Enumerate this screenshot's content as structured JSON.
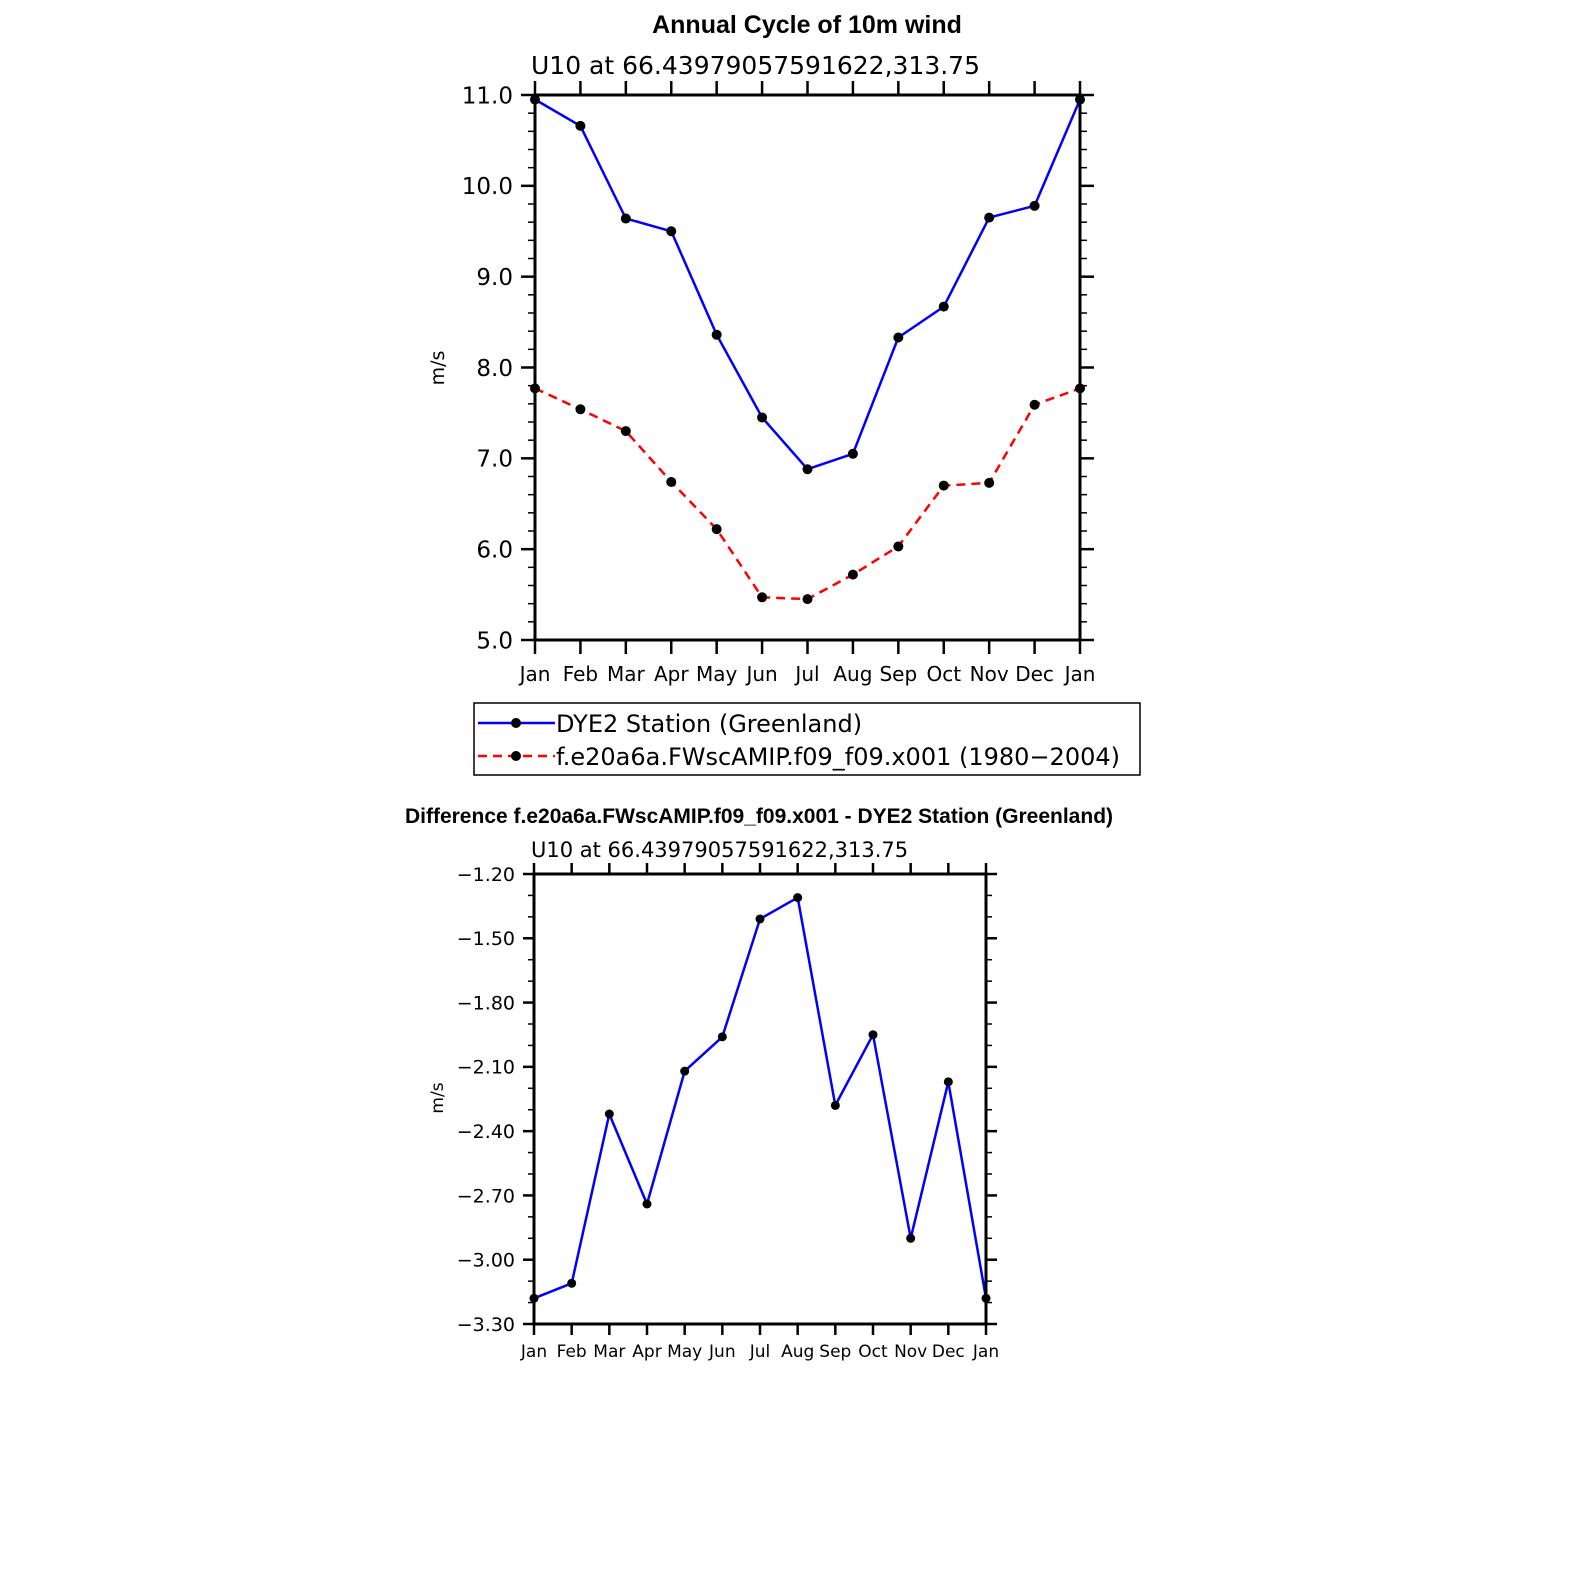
{
  "chart_data": [
    {
      "type": "line",
      "title": "Annual Cycle of 10m wind",
      "subtitle": "U10  at  66.43979057591622,313.75",
      "xlabel": "",
      "ylabel": "m/s",
      "categories": [
        "Jan",
        "Feb",
        "Mar",
        "Apr",
        "May",
        "Jun",
        "Jul",
        "Aug",
        "Sep",
        "Oct",
        "Nov",
        "Dec",
        "Jan"
      ],
      "ylim": [
        5.0,
        11.0
      ],
      "yticks": [
        5.0,
        6.0,
        7.0,
        8.0,
        9.0,
        10.0,
        11.0
      ],
      "ytick_labels": [
        "5.0",
        "6.0",
        "7.0",
        "8.0",
        "9.0",
        "10.0",
        "11.0"
      ],
      "grid": false,
      "legend_position": "bottom",
      "series": [
        {
          "name": "DYE2 Station (Greenland)",
          "color": "#0000ff",
          "line_style": "solid",
          "values": [
            10.95,
            10.66,
            9.64,
            9.5,
            8.36,
            7.45,
            6.88,
            7.05,
            8.33,
            8.67,
            9.65,
            9.78,
            10.95
          ]
        },
        {
          "name": "f.e20a6a.FWscAMIP.f09_f09.x001 (1980−2004)",
          "color": "#ff0000",
          "line_style": "dashed",
          "values": [
            7.77,
            7.54,
            7.3,
            6.74,
            6.22,
            5.47,
            5.45,
            5.72,
            6.03,
            6.7,
            6.73,
            7.59,
            7.77
          ]
        }
      ]
    },
    {
      "type": "line",
      "title": "Difference f.e20a6a.FWscAMIP.f09_f09.x001 - DYE2 Station (Greenland)",
      "subtitle": "U10  at  66.43979057591622,313.75",
      "xlabel": "",
      "ylabel": "m/s",
      "categories": [
        "Jan",
        "Feb",
        "Mar",
        "Apr",
        "May",
        "Jun",
        "Jul",
        "Aug",
        "Sep",
        "Oct",
        "Nov",
        "Dec",
        "Jan"
      ],
      "ylim": [
        -3.3,
        -1.2
      ],
      "yticks": [
        -3.3,
        -3.0,
        -2.7,
        -2.4,
        -2.1,
        -1.8,
        -1.5,
        -1.2
      ],
      "ytick_labels": [
        "−3.30",
        "−3.00",
        "−2.70",
        "−2.40",
        "−2.10",
        "−1.80",
        "−1.50",
        "−1.20"
      ],
      "grid": false,
      "series": [
        {
          "name": "",
          "color": "#0000ff",
          "line_style": "solid",
          "values": [
            -3.18,
            -3.11,
            -2.32,
            -2.74,
            -2.12,
            -1.96,
            -1.41,
            -1.31,
            -2.28,
            -1.95,
            -2.9,
            -2.17,
            -3.18
          ]
        }
      ]
    }
  ]
}
